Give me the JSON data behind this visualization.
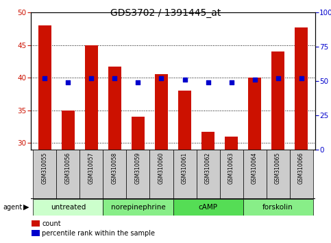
{
  "title": "GDS3702 / 1391445_at",
  "samples": [
    "GSM310055",
    "GSM310056",
    "GSM310057",
    "GSM310058",
    "GSM310059",
    "GSM310060",
    "GSM310061",
    "GSM310062",
    "GSM310063",
    "GSM310064",
    "GSM310065",
    "GSM310066"
  ],
  "counts": [
    48.0,
    35.0,
    45.0,
    41.7,
    34.0,
    40.5,
    38.0,
    31.7,
    31.0,
    40.0,
    44.0,
    47.7
  ],
  "percentiles": [
    52,
    49,
    52,
    52,
    49,
    52,
    51,
    49,
    49,
    51,
    52,
    52
  ],
  "ylim_left": [
    29,
    50
  ],
  "ylim_right": [
    0,
    100
  ],
  "yticks_left": [
    30,
    35,
    40,
    45,
    50
  ],
  "yticks_right": [
    0,
    25,
    50,
    75,
    100
  ],
  "bar_color": "#cc1100",
  "dot_color": "#0000cc",
  "groups": [
    {
      "label": "untreated",
      "start": 0,
      "end": 3,
      "color": "#ccffcc"
    },
    {
      "label": "norepinephrine",
      "start": 3,
      "end": 6,
      "color": "#88ee88"
    },
    {
      "label": "cAMP",
      "start": 6,
      "end": 9,
      "color": "#55dd55"
    },
    {
      "label": "forskolin",
      "start": 9,
      "end": 12,
      "color": "#88ee88"
    }
  ],
  "legend_count_color": "#cc1100",
  "legend_dot_color": "#0000cc",
  "agent_label": "agent",
  "tick_color_left": "#cc1100",
  "tick_color_right": "#0000cc",
  "bar_bottom": 29,
  "sample_box_color": "#cccccc",
  "figure_width": 4.83,
  "figure_height": 3.54,
  "figure_dpi": 100
}
